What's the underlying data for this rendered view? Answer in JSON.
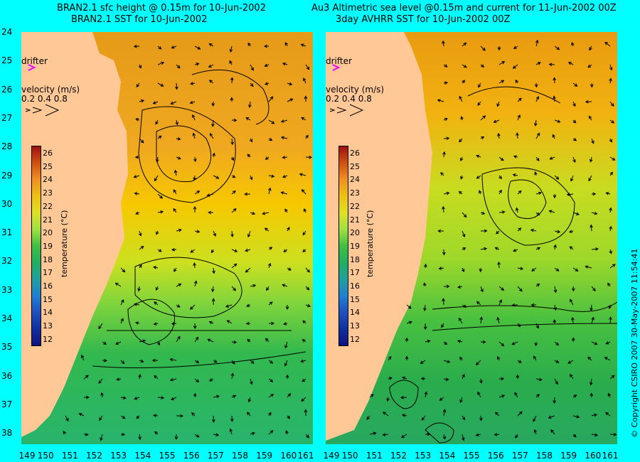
{
  "left": {
    "title_line1": "BRAN2.1 sfc height @ 0.15m for 10-Jun-2002",
    "title_line2": "BRAN2.1 SST for 10-Jun-2002"
  },
  "right": {
    "title_line1": "Au3 Altimetric sea level  @0.15m and current for 11-Jun-2002 00Z",
    "title_line2": "3day AVHRR SST for 10-Jun-2002 00Z"
  },
  "legend": {
    "drifter": "drifter",
    "velocity": "velocity (m/s)",
    "velocity_scale": "0.2 0.4 0.8",
    "temperature_label": "temperature (°C)",
    "colorbar_ticks": [
      "26",
      "25",
      "24",
      "23",
      "22",
      "21",
      "20",
      "19",
      "18",
      "17",
      "16",
      "15",
      "14",
      "13",
      "12"
    ]
  },
  "axes": {
    "lat_ticks": [
      "24",
      "25",
      "26",
      "27",
      "28",
      "29",
      "30",
      "31",
      "32",
      "33",
      "34",
      "35",
      "36",
      "37",
      "38"
    ],
    "lon_ticks_left": [
      "149",
      "150",
      "151",
      "152",
      "153",
      "154",
      "155",
      "156",
      "157",
      "158",
      "159",
      "160",
      "161"
    ],
    "lon_ticks_right": [
      "149",
      "150",
      "151",
      "152",
      "153",
      "154",
      "155",
      "156",
      "157",
      "158",
      "159",
      "160",
      "161"
    ]
  },
  "copyright": "© Copyright CSIRO 2007   30-May-2007 11:54:41",
  "colors": {
    "background": "#00ffff",
    "land": "#ffc896",
    "drifter": "#ff00ff"
  }
}
